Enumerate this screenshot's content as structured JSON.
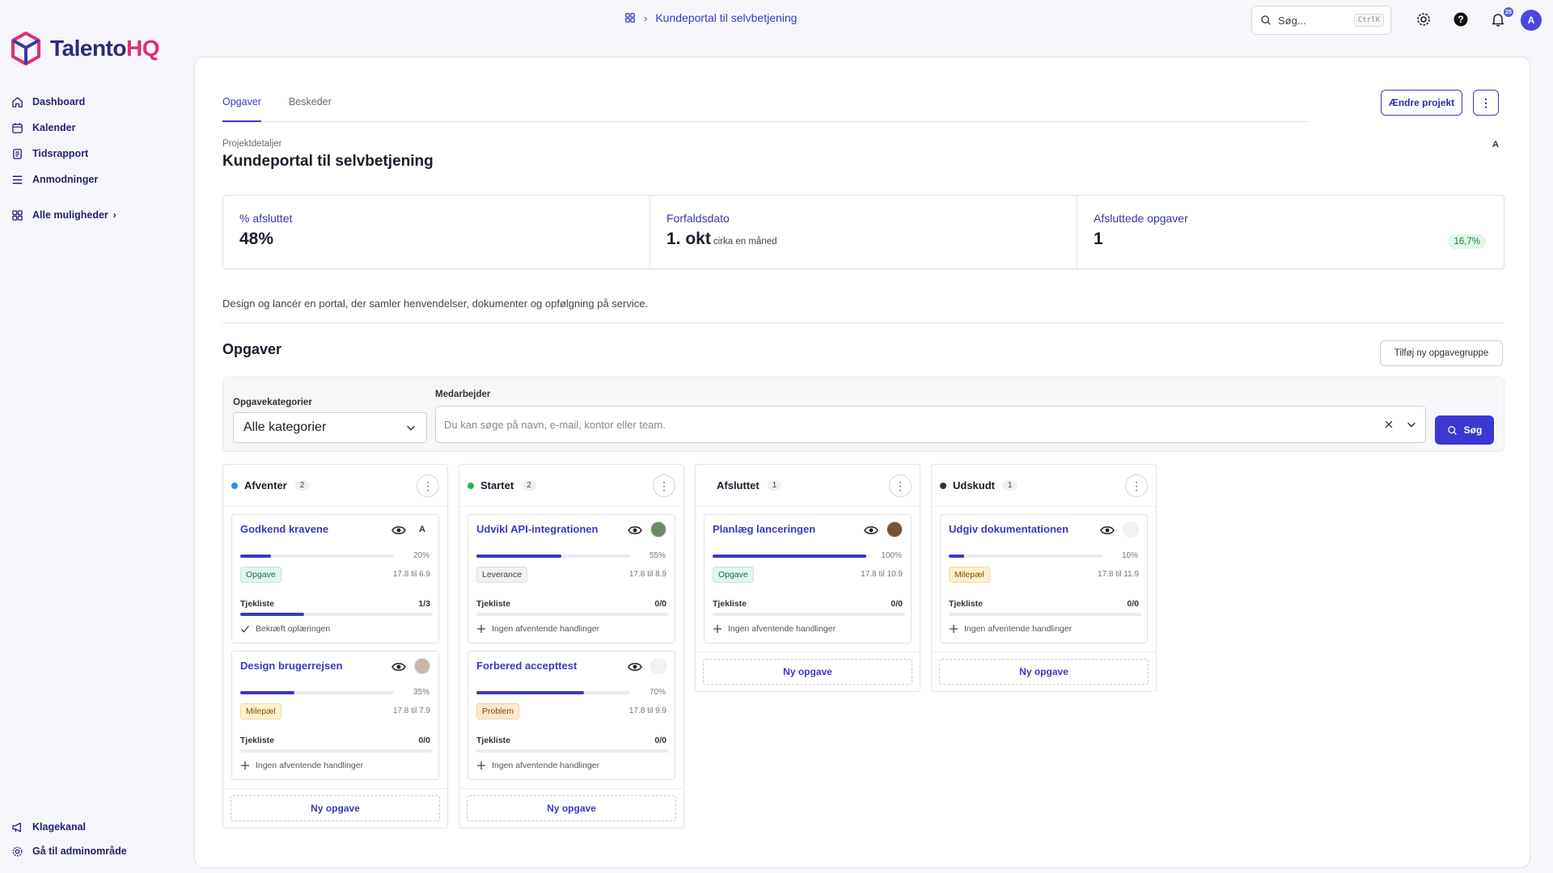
{
  "brand": {
    "name_main": "Talento",
    "name_accent": "HQ"
  },
  "sidebar": {
    "items": [
      {
        "label": "Dashboard",
        "icon": "home-icon"
      },
      {
        "label": "Kalender",
        "icon": "calendar-icon"
      },
      {
        "label": "Tidsrapport",
        "icon": "report-icon"
      },
      {
        "label": "Anmodninger",
        "icon": "list-icon"
      }
    ],
    "all_options": "Alle muligheder",
    "bottom": [
      {
        "label": "Klagekanal",
        "icon": "megaphone-icon"
      },
      {
        "label": "Gå til adminområde",
        "icon": "gear-icon"
      }
    ]
  },
  "topbar": {
    "breadcrumb": "Kundeportal til selvbetjening",
    "search_placeholder": "Søg...",
    "search_shortcut": "CtrlK",
    "notification_count": "25",
    "avatar_initial": "A"
  },
  "tabs": [
    {
      "label": "Opgaver",
      "active": true
    },
    {
      "label": "Beskeder",
      "active": false
    }
  ],
  "actions": {
    "change_project": "Ændre projekt",
    "more": "⋮"
  },
  "project": {
    "label": "Projektdetaljer",
    "title": "Kundeportal til selvbetjening",
    "owner_initial": "A",
    "description": "Design og lancér en portal, der samler henvendelser, dokumenter og opfølgning på service."
  },
  "stats": {
    "complete": {
      "label": "% afsluttet",
      "value": "48%"
    },
    "due": {
      "label": "Forfaldsdato",
      "value": "1. okt",
      "sub": "cirka en måned"
    },
    "done_tasks": {
      "label": "Afsluttede opgaver",
      "value": "1",
      "badge": "16,7%"
    }
  },
  "tasks_section": {
    "title": "Opgaver",
    "add_group": "Tilføj ny opgavegruppe"
  },
  "filters": {
    "category_label": "Opgavekategorier",
    "category_value": "Alle kategorier",
    "employee_label": "Medarbejder",
    "employee_placeholder": "Du kan søge på navn, e-mail, kontor eller team.",
    "search_button": "Søg"
  },
  "columns": [
    {
      "title": "Afventer",
      "count": "2",
      "dot_color": "#2a8fe6",
      "cards": [
        {
          "title": "Godkend kravene",
          "progress": 20,
          "progress_label": "20%",
          "tag": "Opgave",
          "tag_class": "opgave",
          "dates": "17.8 til 6.9",
          "checklist": "Tjekliste",
          "checklist_count": "1/3",
          "checklist_progress": 33,
          "item": "Bekræft oplæringen",
          "item_icon": "check-icon",
          "avatar": "A",
          "avatar_type": "letter"
        },
        {
          "title": "Design brugerrejsen",
          "progress": 35,
          "progress_label": "35%",
          "tag": "Milepæl",
          "tag_class": "milepael",
          "dates": "17.8 til 7.9",
          "checklist": "Tjekliste",
          "checklist_count": "0/0",
          "checklist_progress": 0,
          "item": "Ingen afventende handlinger",
          "item_icon": "plus-icon",
          "avatar": "",
          "avatar_type": "photo",
          "avatar_color": "#c9b7a8"
        }
      ]
    },
    {
      "title": "Startet",
      "count": "2",
      "dot_color": "#22b35a",
      "cards": [
        {
          "title": "Udvikl API-integrationen",
          "progress": 55,
          "progress_label": "55%",
          "tag": "Leverance",
          "tag_class": "leverance",
          "dates": "17.8 til 8.9",
          "checklist": "Tjekliste",
          "checklist_count": "0/0",
          "checklist_progress": 0,
          "item": "Ingen afventende handlinger",
          "item_icon": "plus-icon",
          "avatar": "",
          "avatar_type": "photo",
          "avatar_color": "#6f8a6a"
        },
        {
          "title": "Forbered accepttest",
          "progress": 70,
          "progress_label": "70%",
          "tag": "Problem",
          "tag_class": "problem",
          "dates": "17.8 til 9.9",
          "checklist": "Tjekliste",
          "checklist_count": "0/0",
          "checklist_progress": 0,
          "item": "Ingen afventende handlinger",
          "item_icon": "plus-icon",
          "avatar": "",
          "avatar_type": "empty"
        }
      ]
    },
    {
      "title": "Afsluttet",
      "count": "1",
      "dot_color": "#ffffff",
      "cards": [
        {
          "title": "Planlæg lanceringen",
          "progress": 100,
          "progress_label": "100%",
          "tag": "Opgave",
          "tag_class": "opgave",
          "dates": "17.8 til 10.9",
          "checklist": "Tjekliste",
          "checklist_count": "0/0",
          "checklist_progress": 0,
          "item": "Ingen afventende handlinger",
          "item_icon": "plus-icon",
          "avatar": "",
          "avatar_type": "photo",
          "avatar_color": "#7a5232"
        }
      ]
    },
    {
      "title": "Udskudt",
      "count": "1",
      "dot_color": "#333333",
      "cards": [
        {
          "title": "Udgiv dokumentationen",
          "progress": 10,
          "progress_label": "10%",
          "tag": "Milepæl",
          "tag_class": "milepael",
          "dates": "17.8 til 11.9",
          "checklist": "Tjekliste",
          "checklist_count": "0/0",
          "checklist_progress": 0,
          "item": "Ingen afventende handlinger",
          "item_icon": "plus-icon",
          "avatar": "",
          "avatar_type": "empty"
        }
      ]
    }
  ],
  "new_task_label": "Ny opgave",
  "colors": {
    "accent": "#3b38c4",
    "brand_accent": "#e0306b",
    "success": "#1d7a45"
  }
}
